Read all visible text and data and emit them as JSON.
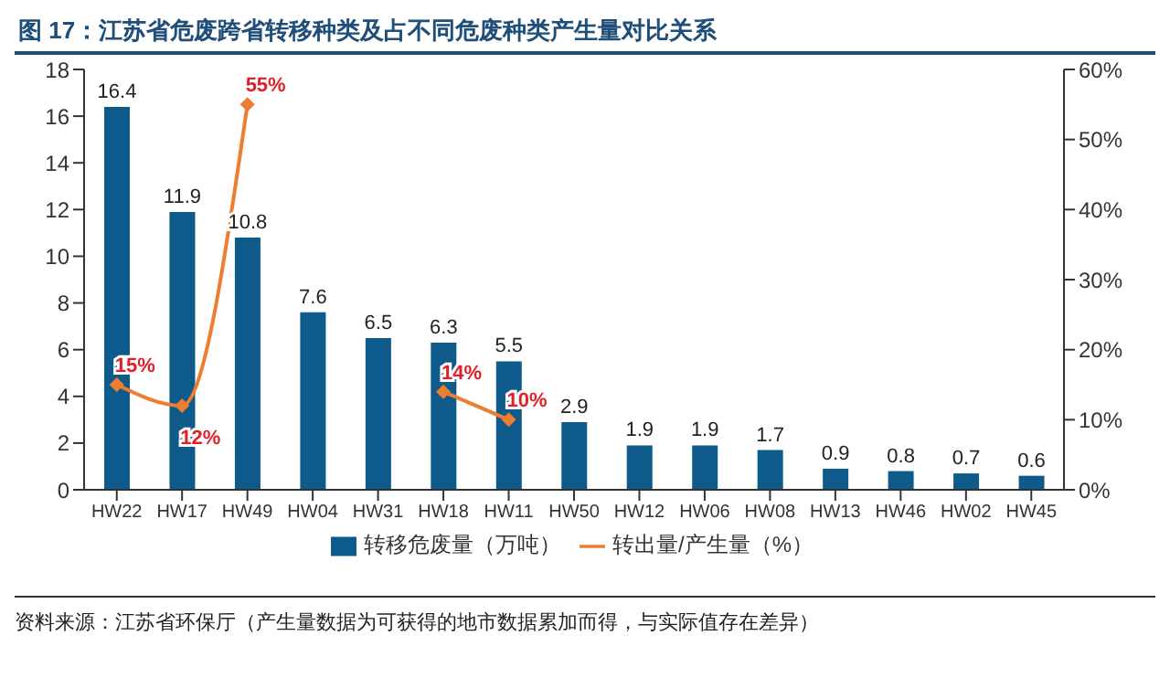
{
  "chart_data": {
    "type": "bar",
    "title": "图 17：江苏省危废跨省转移种类及占不同危废种类产生量对比关系",
    "categories": [
      "HW22",
      "HW17",
      "HW49",
      "HW04",
      "HW31",
      "HW18",
      "HW11",
      "HW50",
      "HW12",
      "HW06",
      "HW08",
      "HW13",
      "HW46",
      "HW02",
      "HW45"
    ],
    "series": [
      {
        "name": "转移危废量（万吨）",
        "color": "#0e5a8a",
        "values": [
          16.4,
          11.9,
          10.8,
          7.6,
          6.5,
          6.3,
          5.5,
          2.9,
          1.9,
          1.9,
          1.7,
          0.9,
          0.8,
          0.7,
          0.6
        ],
        "value_labels": [
          "16.4",
          "11.9",
          "10.8",
          "7.6",
          "6.5",
          "6.3",
          "5.5",
          "2.9",
          "1.9",
          "1.9",
          "1.7",
          "0.9",
          "0.8",
          "0.7",
          "0.6"
        ]
      },
      {
        "name": "转出量/产生量（%）",
        "type": "line",
        "axis": "y2",
        "color": "#ed7d31",
        "marker": "diamond",
        "values": [
          15,
          12,
          55,
          null,
          null,
          14,
          10,
          null,
          null,
          null,
          null,
          null,
          null,
          null,
          null
        ],
        "value_labels": [
          "15%",
          "12%",
          "55%",
          null,
          null,
          "14%",
          "10%",
          null,
          null,
          null,
          null,
          null,
          null,
          null,
          null
        ]
      }
    ],
    "ylim": [
      0,
      18
    ],
    "yticks": [
      0,
      2,
      4,
      6,
      8,
      10,
      12,
      14,
      16,
      18
    ],
    "y2lim": [
      0,
      60
    ],
    "y2ticks": [
      {
        "value": 0,
        "label": "0%"
      },
      {
        "value": 10,
        "label": "10%"
      },
      {
        "value": 20,
        "label": "20%"
      },
      {
        "value": 30,
        "label": "30%"
      },
      {
        "value": 40,
        "label": "40%"
      },
      {
        "value": 50,
        "label": "50%"
      },
      {
        "value": 60,
        "label": "60%"
      }
    ],
    "grid": false,
    "legend": "bottom",
    "annotations": [
      "资料来源：江苏省环保厅（产生量数据为可获得的地市数据累加而得，与实际值存在差异）"
    ]
  }
}
